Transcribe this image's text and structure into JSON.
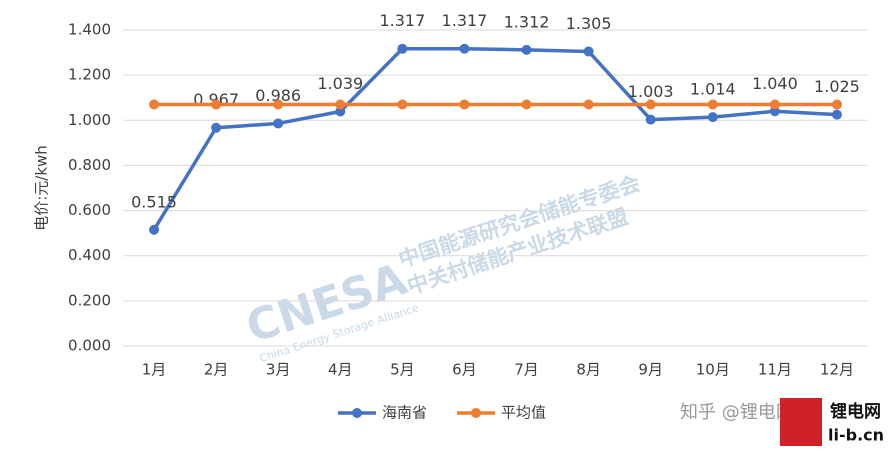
{
  "chart_data": {
    "type": "line",
    "y_label": "电价:元/kwh",
    "categories": [
      "1月",
      "2月",
      "3月",
      "4月",
      "5月",
      "6月",
      "7月",
      "8月",
      "9月",
      "10月",
      "11月",
      "12月"
    ],
    "series": [
      {
        "name": "海南省",
        "color": "#4472c4",
        "values": [
          0.515,
          0.967,
          0.986,
          1.039,
          1.317,
          1.317,
          1.312,
          1.305,
          1.003,
          1.014,
          1.04,
          1.025
        ],
        "value_labels": [
          "0.515",
          "0.967",
          "0.986",
          "1.039",
          "1.317",
          "1.317",
          "1.312",
          "1.305",
          "1.003",
          "1.014",
          "1.040",
          "1.025"
        ]
      },
      {
        "name": "平均值",
        "color": "#ed7d31",
        "values": [
          1.07,
          1.07,
          1.07,
          1.07,
          1.07,
          1.07,
          1.07,
          1.07,
          1.07,
          1.07,
          1.07,
          1.07
        ]
      }
    ],
    "ylim": [
      0,
      1.4
    ],
    "yticks": [
      {
        "value": 0,
        "label": "0.000"
      },
      {
        "value": 0.2,
        "label": "0.200"
      },
      {
        "value": 0.4,
        "label": "0.400"
      },
      {
        "value": 0.6,
        "label": "0.600"
      },
      {
        "value": 0.8,
        "label": "0.800"
      },
      {
        "value": 1.0,
        "label": "1.000"
      },
      {
        "value": 1.2,
        "label": "1.200"
      },
      {
        "value": 1.4,
        "label": "1.400"
      }
    ],
    "grid": true,
    "legend": "bottom"
  },
  "watermarks": {
    "org1": "中国能源研究会储能专委会",
    "org2": "中关村储能产业技术联盟",
    "logo": "CNESA",
    "logo_sub": "China Energy Storage Alliance",
    "zhihu": "知乎 @锂电网",
    "site_cn": "锂电网",
    "site": "li-b.cn"
  }
}
